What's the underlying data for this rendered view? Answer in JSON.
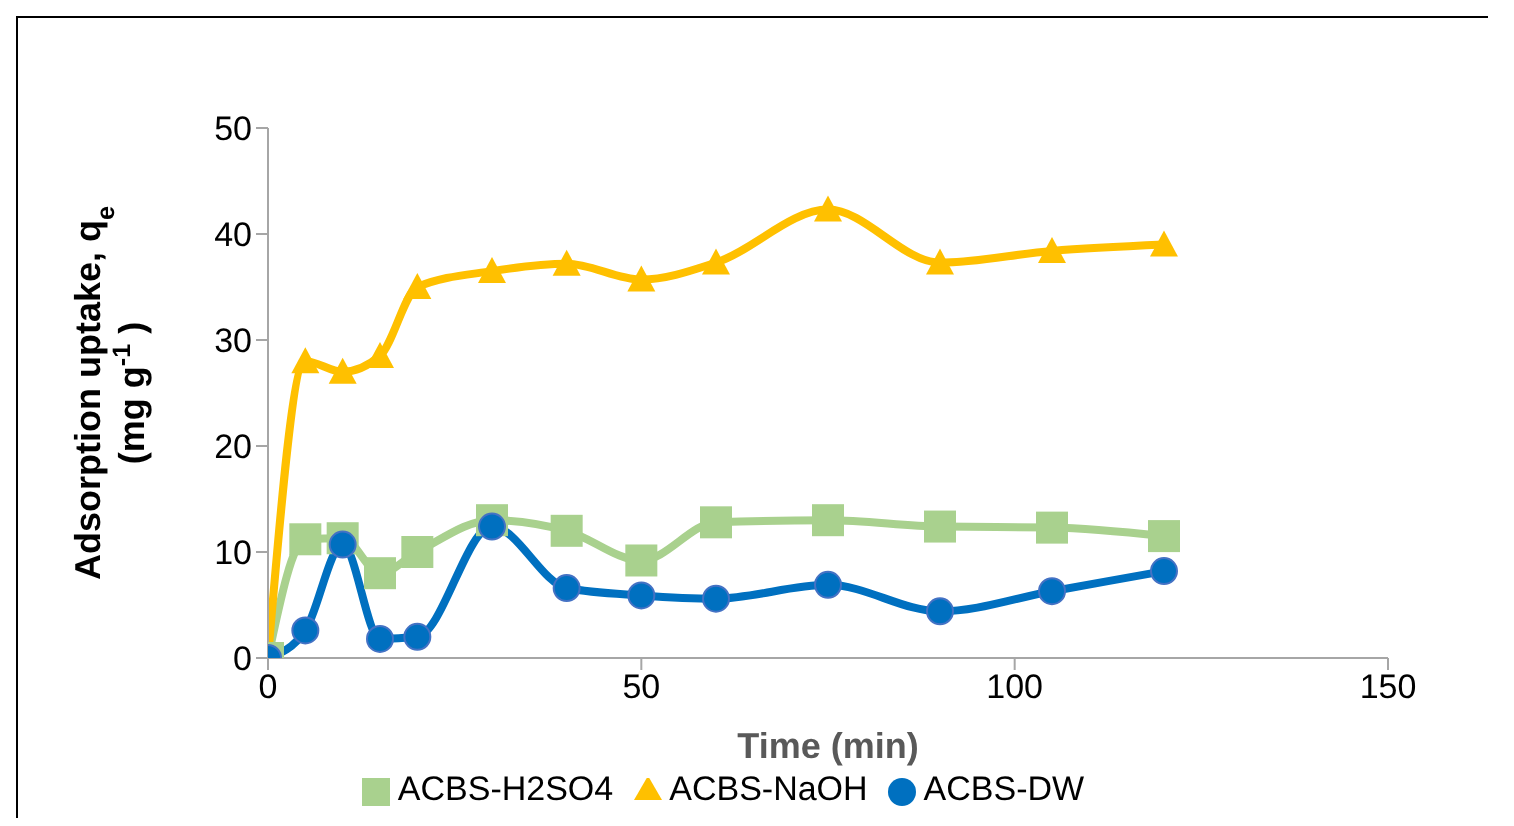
{
  "chart_data": {
    "type": "line",
    "xlabel": "Time (min)",
    "ylabel": "Adsorption uptake, q$_{e}$ (mg g$^{-1}$ )",
    "x": [
      0,
      5,
      10,
      15,
      20,
      30,
      40,
      50,
      60,
      75,
      90,
      105,
      120
    ],
    "series": [
      {
        "name": "ACBS-H2SO4",
        "color": "#a9d18e",
        "marker": "square",
        "values": [
          0,
          11.2,
          11.3,
          8,
          10,
          13,
          12,
          9.2,
          12.8,
          13,
          12.4,
          12.3,
          11.5
        ]
      },
      {
        "name": "ACBS-NaOH",
        "color": "#ffc000",
        "marker": "triangle",
        "values": [
          0,
          28,
          27,
          28.5,
          35,
          36.5,
          37.2,
          35.7,
          37.3,
          42.3,
          37.3,
          38.4,
          39
        ]
      },
      {
        "name": "ACBS-DW",
        "color": "#0070c0",
        "marker": "circle",
        "values": [
          0,
          2.6,
          10.7,
          1.8,
          2,
          12.4,
          6.6,
          5.9,
          5.6,
          6.9,
          4.4,
          6.3,
          8.2
        ]
      }
    ],
    "xlim": [
      0,
      150
    ],
    "xticks": [
      0,
      50,
      100,
      150
    ],
    "ylim": [
      0,
      50
    ],
    "yticks": [
      0,
      10,
      20,
      30,
      40,
      50
    ],
    "grid": false,
    "legend": "bottom"
  }
}
